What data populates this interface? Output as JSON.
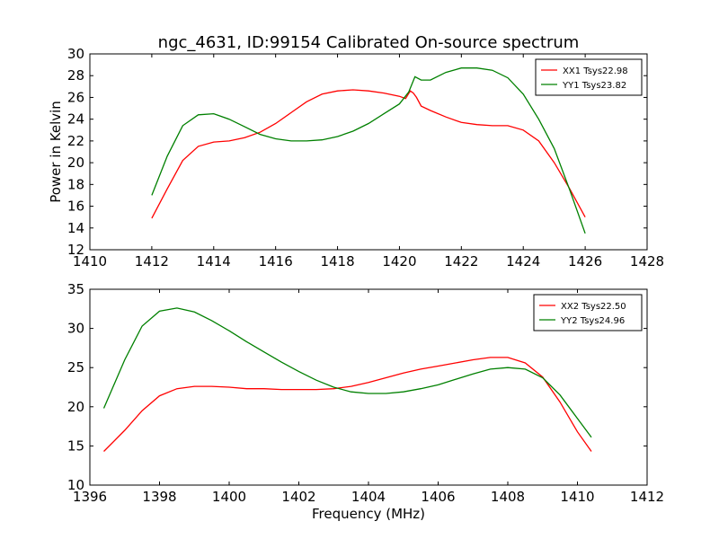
{
  "title": "ngc_4631, ID:99154 Calibrated On-source spectrum",
  "colors": {
    "red": "#ff0000",
    "green": "#008000",
    "axes": "#000000"
  },
  "chart_data": [
    {
      "type": "line",
      "ylabel": "Power in Kelvin",
      "xlabel": "",
      "xlim": [
        1410,
        1428
      ],
      "ylim": [
        12,
        30
      ],
      "xticks": [
        1410,
        1412,
        1414,
        1416,
        1418,
        1420,
        1422,
        1424,
        1426,
        1428
      ],
      "yticks": [
        12,
        14,
        16,
        18,
        20,
        22,
        24,
        26,
        28,
        30
      ],
      "legend_position": "top-right",
      "grid": false,
      "series": [
        {
          "name": "XX1 Tsys22.98",
          "color": "#ff0000",
          "x": [
            1412.0,
            1412.5,
            1413.0,
            1413.5,
            1414.0,
            1414.5,
            1415.0,
            1415.5,
            1416.0,
            1416.5,
            1417.0,
            1417.5,
            1418.0,
            1418.5,
            1419.0,
            1419.5,
            1420.0,
            1420.2,
            1420.35,
            1420.45,
            1420.55,
            1420.7,
            1421.0,
            1421.5,
            1422.0,
            1422.5,
            1423.0,
            1423.5,
            1424.0,
            1424.5,
            1425.0,
            1425.5,
            1426.0
          ],
          "y": [
            14.9,
            17.6,
            20.2,
            21.5,
            21.9,
            22.0,
            22.3,
            22.8,
            23.6,
            24.6,
            25.6,
            26.3,
            26.6,
            26.7,
            26.6,
            26.4,
            26.1,
            25.9,
            26.6,
            26.4,
            26.0,
            25.2,
            24.8,
            24.2,
            23.7,
            23.5,
            23.4,
            23.4,
            23.0,
            22.0,
            20.0,
            17.6,
            15.0
          ]
        },
        {
          "name": "YY1 Tsys23.82",
          "color": "#008000",
          "x": [
            1412.0,
            1412.5,
            1413.0,
            1413.5,
            1414.0,
            1414.5,
            1415.0,
            1415.5,
            1416.0,
            1416.5,
            1417.0,
            1417.5,
            1418.0,
            1418.5,
            1419.0,
            1419.5,
            1420.0,
            1420.3,
            1420.5,
            1420.7,
            1421.0,
            1421.5,
            1422.0,
            1422.3,
            1422.5,
            1423.0,
            1423.5,
            1424.0,
            1424.5,
            1425.0,
            1425.5,
            1426.0
          ],
          "y": [
            17.0,
            20.6,
            23.4,
            24.4,
            24.5,
            24.0,
            23.3,
            22.6,
            22.2,
            22.0,
            22.0,
            22.1,
            22.4,
            22.9,
            23.6,
            24.5,
            25.4,
            26.5,
            27.9,
            27.6,
            27.6,
            28.3,
            28.7,
            28.7,
            28.7,
            28.5,
            27.8,
            26.3,
            24.0,
            21.3,
            17.5,
            13.5
          ]
        }
      ]
    },
    {
      "type": "line",
      "ylabel": "",
      "xlabel": "Frequency (MHz)",
      "xlim": [
        1396,
        1412
      ],
      "ylim": [
        10,
        35
      ],
      "xticks": [
        1396,
        1398,
        1400,
        1402,
        1404,
        1406,
        1408,
        1410,
        1412
      ],
      "yticks": [
        10,
        15,
        20,
        25,
        30,
        35
      ],
      "legend_position": "top-right",
      "grid": false,
      "series": [
        {
          "name": "XX2 Tsys22.50",
          "color": "#ff0000",
          "x": [
            1396.4,
            1397.0,
            1397.5,
            1398.0,
            1398.5,
            1399.0,
            1399.5,
            1400.0,
            1400.5,
            1401.0,
            1401.5,
            1402.0,
            1402.5,
            1403.0,
            1403.5,
            1404.0,
            1404.5,
            1405.0,
            1405.5,
            1406.0,
            1406.5,
            1407.0,
            1407.5,
            1408.0,
            1408.5,
            1409.0,
            1409.5,
            1410.0,
            1410.4
          ],
          "y": [
            14.3,
            17.0,
            19.5,
            21.4,
            22.3,
            22.6,
            22.6,
            22.5,
            22.3,
            22.3,
            22.2,
            22.2,
            22.2,
            22.3,
            22.6,
            23.1,
            23.7,
            24.3,
            24.8,
            25.2,
            25.6,
            26.0,
            26.3,
            26.3,
            25.6,
            23.8,
            20.6,
            16.8,
            14.3
          ]
        },
        {
          "name": "YY2 Tsys24.96",
          "color": "#008000",
          "x": [
            1396.4,
            1397.0,
            1397.5,
            1398.0,
            1398.5,
            1399.0,
            1399.5,
            1400.0,
            1400.5,
            1401.0,
            1401.5,
            1402.0,
            1402.5,
            1403.0,
            1403.5,
            1404.0,
            1404.5,
            1405.0,
            1405.5,
            1406.0,
            1406.5,
            1407.0,
            1407.5,
            1408.0,
            1408.5,
            1409.0,
            1409.5,
            1410.0,
            1410.4
          ],
          "y": [
            19.8,
            26.0,
            30.3,
            32.2,
            32.6,
            32.1,
            31.0,
            29.7,
            28.3,
            27.0,
            25.7,
            24.5,
            23.4,
            22.5,
            21.9,
            21.7,
            21.7,
            21.9,
            22.3,
            22.8,
            23.5,
            24.2,
            24.8,
            25.0,
            24.8,
            23.7,
            21.5,
            18.5,
            16.1
          ]
        }
      ]
    }
  ]
}
